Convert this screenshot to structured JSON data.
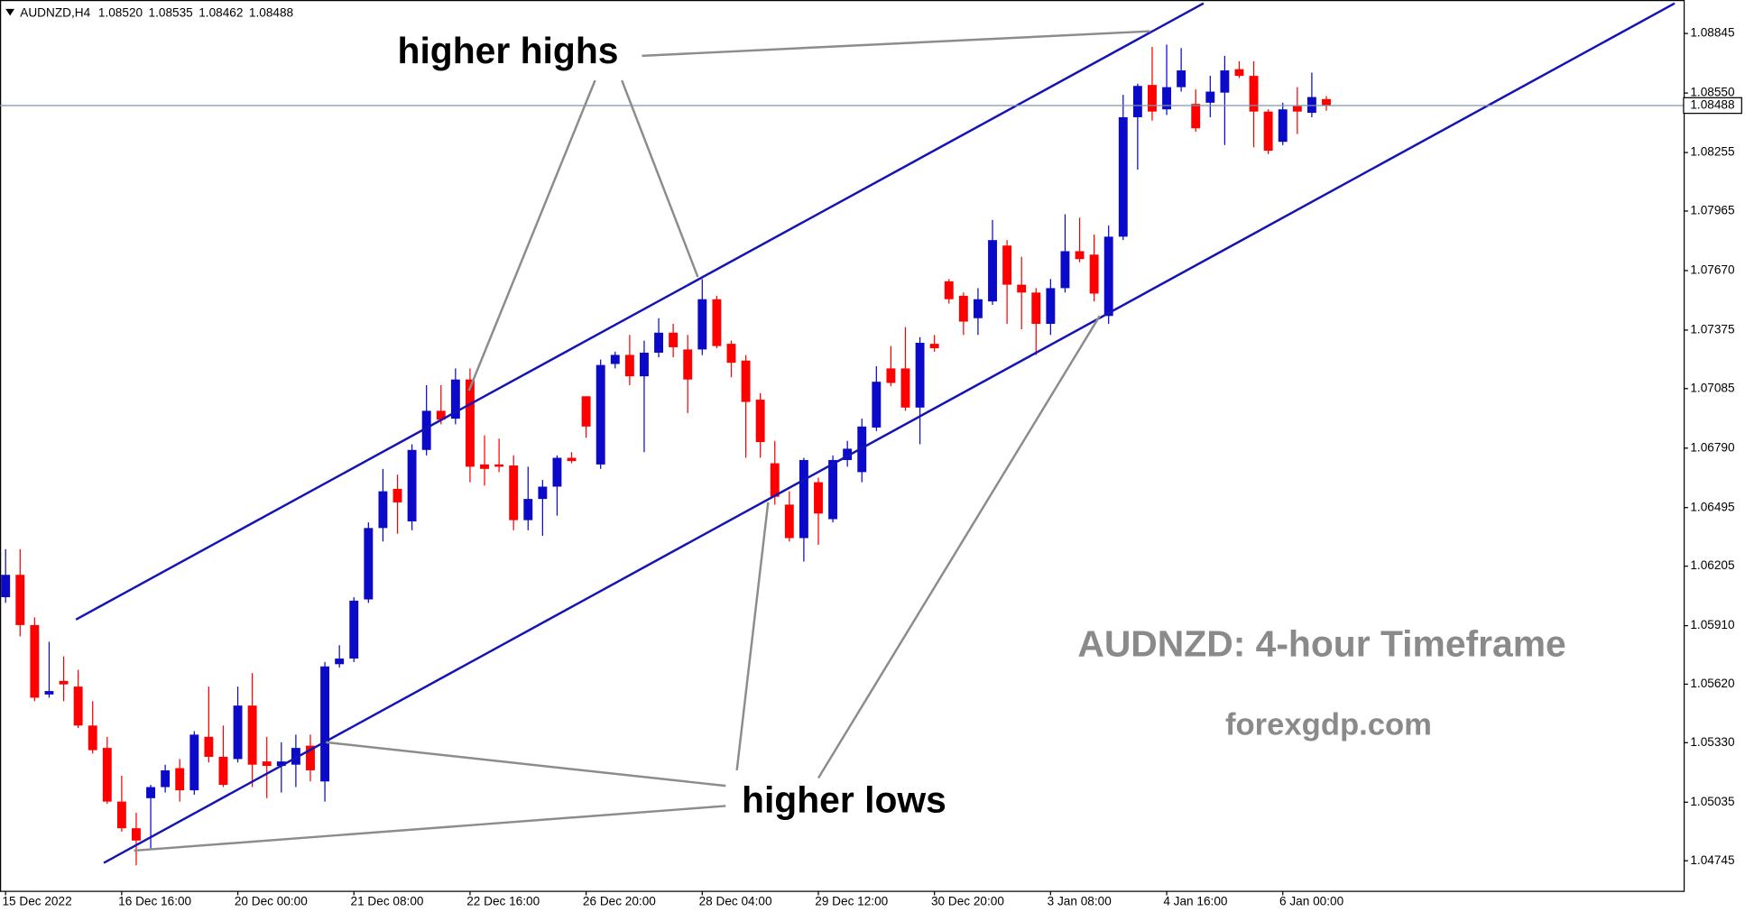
{
  "chart_data": {
    "type": "candlestick",
    "symbol": "AUDNZD,H4",
    "ohlc_labels": [
      "1.08520",
      "1.08535",
      "1.08462",
      "1.08488"
    ],
    "annotations": [
      "higher highs",
      "higher lows",
      "AUDNZD: 4-hour Timeframe",
      "forexgdp.com"
    ],
    "up_color": "#0a0ac8",
    "down_color": "#ff0000",
    "categories": [
      "15 Dec 2022",
      null,
      null,
      null,
      null,
      null,
      null,
      null,
      "16 Dec 16:00",
      null,
      null,
      null,
      null,
      null,
      null,
      null,
      "20 Dec 00:00",
      null,
      null,
      null,
      null,
      null,
      null,
      null,
      "21 Dec 08:00",
      null,
      null,
      null,
      null,
      null,
      null,
      null,
      "22 Dec 16:00",
      null,
      null,
      null,
      null,
      null,
      null,
      null,
      "26 Dec 20:00",
      null,
      null,
      null,
      null,
      null,
      null,
      null,
      "28 Dec 04:00",
      null,
      null,
      null,
      null,
      null,
      null,
      null,
      "29 Dec 12:00",
      null,
      null,
      null,
      null,
      null,
      null,
      null,
      "30 Dec 20:00",
      null,
      null,
      null,
      null,
      null,
      null,
      null,
      "3 Jan 08:00",
      null,
      null,
      null,
      null,
      null,
      null,
      null,
      "4 Jan 16:00",
      null,
      null,
      null,
      null,
      null,
      null,
      null,
      "6 Jan 00:00",
      null,
      null,
      null
    ],
    "open": [
      1.06051,
      1.06162,
      1.05913,
      1.05569,
      1.05636,
      1.05608,
      1.05415,
      1.05304,
      1.05038,
      1.04906,
      1.05055,
      1.0511,
      1.05204,
      1.05094,
      1.05359,
      1.0526,
      1.05249,
      1.05514,
      1.05237,
      1.05215,
      1.05221,
      1.05315,
      1.05138,
      1.05719,
      1.05747,
      1.0604,
      1.06394,
      1.06588,
      1.06427,
      1.06781,
      1.06975,
      1.06936,
      1.0713,
      1.06709,
      1.06709,
      1.06704,
      1.06433,
      1.06538,
      1.06599,
      1.06742,
      1.07047,
      1.06709,
      1.07207,
      1.07252,
      1.07146,
      1.07263,
      1.07362,
      1.07279,
      1.07279,
      1.07528,
      1.07307,
      1.07224,
      1.0703,
      1.06715,
      1.0651,
      1.06344,
      1.06621,
      1.06438,
      1.06731,
      1.06671,
      1.06892,
      1.07185,
      1.07185,
      1.06991,
      1.07307,
      1.07617,
      1.07545,
      1.07434,
      1.07517,
      1.07794,
      1.076,
      1.07561,
      1.07406,
      1.07583,
      1.07766,
      1.07749,
      1.07445,
      1.07838,
      1.0843,
      1.0859,
      1.08469,
      1.08579,
      1.08496,
      1.08502,
      1.08552,
      1.08668,
      1.08635,
      1.08458,
      1.08308,
      1.08485,
      1.08452,
      1.0852
    ],
    "high": [
      1.06289,
      1.06289,
      1.05951,
      1.0583,
      1.05758,
      1.05691,
      1.05536,
      1.05359,
      1.05166,
      1.04983,
      1.05121,
      1.05221,
      1.05249,
      1.05387,
      1.05608,
      1.05415,
      1.05608,
      1.05675,
      1.05359,
      1.05332,
      1.0537,
      1.0537,
      1.0573,
      1.05813,
      1.06051,
      1.06422,
      1.06687,
      1.06659,
      1.06809,
      1.07102,
      1.07102,
      1.07185,
      1.07185,
      1.06853,
      1.06837,
      1.06754,
      1.06698,
      1.06632,
      1.06754,
      1.0677,
      1.07047,
      1.07229,
      1.07268,
      1.07351,
      1.07323,
      1.07434,
      1.07406,
      1.07351,
      1.07628,
      1.07545,
      1.07323,
      1.07251,
      1.07063,
      1.06826,
      1.06576,
      1.06742,
      1.06643,
      1.06754,
      1.06826,
      1.06936,
      1.07196,
      1.07296,
      1.0739,
      1.0734,
      1.07351,
      1.07628,
      1.07561,
      1.07583,
      1.07921,
      1.07821,
      1.07738,
      1.07583,
      1.07628,
      1.07949,
      1.07932,
      1.07849,
      1.07893,
      1.08541,
      1.08596,
      1.08779,
      1.0879,
      1.08773,
      1.08568,
      1.08635,
      1.08734,
      1.08707,
      1.08707,
      1.08469,
      1.08502,
      1.08579,
      1.08651,
      1.08535
    ],
    "low": [
      1.06023,
      1.05857,
      1.05536,
      1.05553,
      1.05536,
      1.05403,
      1.05276,
      1.05027,
      1.04889,
      1.04723,
      1.04806,
      1.05083,
      1.05038,
      1.05072,
      1.05232,
      1.0511,
      1.05232,
      1.0511,
      1.05055,
      1.05083,
      1.0511,
      1.05138,
      1.05038,
      1.05702,
      1.0573,
      1.06023,
      1.06327,
      1.06366,
      1.06383,
      1.06754,
      1.06908,
      1.06908,
      1.06621,
      1.06604,
      1.06671,
      1.06383,
      1.06383,
      1.06355,
      1.06455,
      1.06715,
      1.06842,
      1.06687,
      1.07185,
      1.07102,
      1.0677,
      1.0724,
      1.0724,
      1.06964,
      1.07251,
      1.07285,
      1.07141,
      1.06742,
      1.06742,
      1.0651,
      1.06327,
      1.06228,
      1.06311,
      1.06422,
      1.06698,
      1.06621,
      1.06875,
      1.07097,
      1.06975,
      1.06809,
      1.07268,
      1.07506,
      1.07351,
      1.07351,
      1.075,
      1.07406,
      1.07379,
      1.07251,
      1.07351,
      1.07561,
      1.07711,
      1.07517,
      1.07406,
      1.07821,
      1.0817,
      1.08413,
      1.08441,
      1.08557,
      1.08358,
      1.0843,
      1.08292,
      1.08624,
      1.08281,
      1.08247,
      1.08292,
      1.08347,
      1.0843,
      1.08462
    ],
    "close": [
      1.06162,
      1.05913,
      1.05553,
      1.05586,
      1.05619,
      1.05415,
      1.05293,
      1.05038,
      1.04906,
      1.04845,
      1.0511,
      1.05193,
      1.05094,
      1.0537,
      1.0526,
      1.05121,
      1.05514,
      1.05221,
      1.05215,
      1.05237,
      1.05304,
      1.05193,
      1.05708,
      1.05747,
      1.06034,
      1.06394,
      1.06576,
      1.06521,
      1.06781,
      1.06975,
      1.06931,
      1.0713,
      1.06698,
      1.06687,
      1.06698,
      1.06433,
      1.06538,
      1.06599,
      1.06742,
      1.06726,
      1.06897,
      1.07202,
      1.07252,
      1.07146,
      1.07263,
      1.07362,
      1.0729,
      1.0713,
      1.07528,
      1.07296,
      1.07213,
      1.07019,
      1.0682,
      1.06549,
      1.06344,
      1.06731,
      1.06466,
      1.06731,
      1.06787,
      1.06897,
      1.07119,
      1.07113,
      1.06991,
      1.07312,
      1.07285,
      1.07528,
      1.07417,
      1.07528,
      1.07821,
      1.076,
      1.07561,
      1.07406,
      1.07583,
      1.07766,
      1.07727,
      1.07556,
      1.07838,
      1.0843,
      1.08585,
      1.08458,
      1.08579,
      1.08662,
      1.08375,
      1.08557,
      1.08662,
      1.08635,
      1.08458,
      1.08264,
      1.08469,
      1.08458,
      1.0853,
      1.08488
    ],
    "ylim": [
      1.04596,
      1.09011
    ],
    "yticks": [
      1.08845,
      {
        "value": 1.0855,
        "label": "1.08550"
      },
      1.08255,
      1.07965,
      {
        "value": 1.0767,
        "label": "1.07670"
      },
      1.07375,
      1.07085,
      {
        "value": 1.0679,
        "label": "1.06790"
      },
      1.06495,
      1.06205,
      {
        "value": 1.0591,
        "label": "1.05910"
      },
      {
        "value": 1.0562,
        "label": "1.05620"
      },
      {
        "value": 1.0533,
        "label": "1.05330"
      },
      1.05035,
      1.04745
    ]
  }
}
